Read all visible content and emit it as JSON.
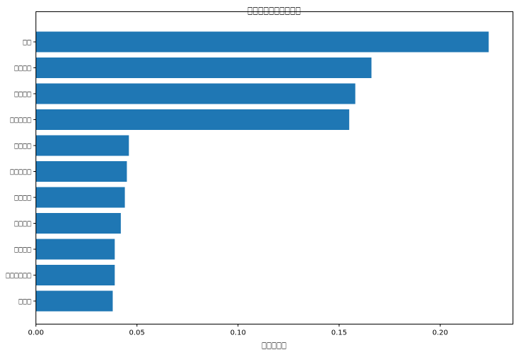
{
  "chart_data": {
    "type": "bar",
    "orientation": "horizontal",
    "title": "□□□□□□□□□□",
    "xlabel": "□□□□□",
    "ylabel": "",
    "categories": [
      "□□",
      "□□□□",
      "□□□□",
      "□□□□□",
      "□□□□",
      "□□□□□",
      "□□□□",
      "□□□□",
      "□□□□",
      "□□□□□□",
      "□□□"
    ],
    "values": [
      0.224,
      0.166,
      0.158,
      0.155,
      0.046,
      0.045,
      0.044,
      0.042,
      0.039,
      0.039,
      0.038
    ],
    "xlim": [
      0,
      0.236
    ],
    "xticks": [
      0,
      0.05,
      0.1,
      0.15,
      0.2
    ],
    "xtick_labels": [
      "0.00",
      "0.05",
      "0.10",
      "0.15",
      "0.20"
    ],
    "grid": false,
    "legend": "none",
    "bar_color": "#1f77b4"
  }
}
